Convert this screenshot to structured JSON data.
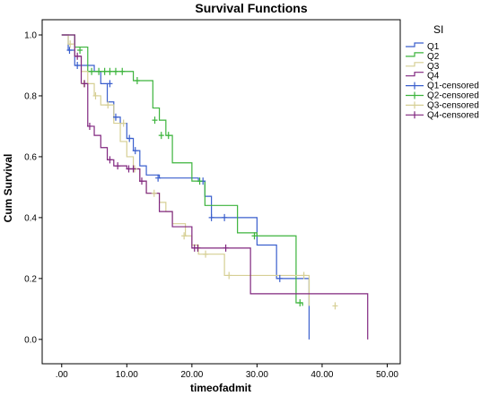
{
  "chart_data": {
    "type": "line",
    "subtype": "kaplan-meier step",
    "title": "Survival Functions",
    "xlabel": "timeofadmit",
    "ylabel": "Cum Survival",
    "xlim": [
      -3,
      52
    ],
    "ylim": [
      -0.08,
      1.05
    ],
    "x_ticks": [
      0,
      10,
      20,
      30,
      40,
      50
    ],
    "x_tick_labels": [
      ".00",
      "10.00",
      "20.00",
      "30.00",
      "40.00",
      "50.00"
    ],
    "y_ticks": [
      0.0,
      0.2,
      0.4,
      0.6,
      0.8,
      1.0
    ],
    "y_tick_labels": [
      "0.0",
      "0.2",
      "0.4",
      "0.6",
      "0.8",
      "1.0"
    ],
    "grid": false,
    "legend": {
      "title": "SI",
      "placement": "top-right outside",
      "entries": [
        "Q1",
        "Q2",
        "Q3",
        "Q4",
        "Q1-censored",
        "Q2-censored",
        "Q3-censored",
        "Q4-censored"
      ]
    },
    "series": [
      {
        "name": "Q1",
        "color": "#3a5fcd",
        "steps": [
          [
            0,
            1.0
          ],
          [
            1,
            0.95
          ],
          [
            2,
            0.9
          ],
          [
            5,
            0.88
          ],
          [
            6,
            0.84
          ],
          [
            7,
            0.78
          ],
          [
            8,
            0.73
          ],
          [
            9,
            0.71
          ],
          [
            10,
            0.66
          ],
          [
            11,
            0.62
          ],
          [
            12,
            0.57
          ],
          [
            13,
            0.54
          ],
          [
            15,
            0.53
          ],
          [
            21,
            0.52
          ],
          [
            22,
            0.47
          ],
          [
            23,
            0.4
          ],
          [
            30,
            0.31
          ],
          [
            33,
            0.2
          ],
          [
            38,
            0.0
          ]
        ],
        "censored": [
          [
            1.2,
            0.95
          ],
          [
            2.4,
            0.9
          ],
          [
            7.4,
            0.84
          ],
          [
            8.3,
            0.73
          ],
          [
            10.4,
            0.66
          ],
          [
            11.3,
            0.62
          ],
          [
            14.8,
            0.53
          ],
          [
            21.7,
            0.52
          ],
          [
            23,
            0.4
          ],
          [
            25,
            0.4
          ],
          [
            33.5,
            0.2
          ]
        ]
      },
      {
        "name": "Q2",
        "color": "#3cb43c",
        "steps": [
          [
            0,
            1.0
          ],
          [
            2,
            0.96
          ],
          [
            4,
            0.88
          ],
          [
            11,
            0.85
          ],
          [
            14,
            0.76
          ],
          [
            15,
            0.72
          ],
          [
            16,
            0.67
          ],
          [
            17,
            0.58
          ],
          [
            20,
            0.52
          ],
          [
            22,
            0.44
          ],
          [
            27,
            0.35
          ],
          [
            30,
            0.34
          ],
          [
            36,
            0.12
          ],
          [
            37,
            0.11
          ]
        ],
        "censored": [
          [
            2.8,
            0.95
          ],
          [
            4.6,
            0.88
          ],
          [
            5.7,
            0.88
          ],
          [
            6.6,
            0.88
          ],
          [
            7.4,
            0.88
          ],
          [
            8.3,
            0.88
          ],
          [
            9.3,
            0.88
          ],
          [
            11.6,
            0.85
          ],
          [
            14.3,
            0.72
          ],
          [
            15.3,
            0.67
          ],
          [
            16.4,
            0.67
          ],
          [
            21.2,
            0.52
          ],
          [
            29.6,
            0.34
          ],
          [
            36.6,
            0.12
          ]
        ]
      },
      {
        "name": "Q3",
        "color": "#d6cf94",
        "steps": [
          [
            0,
            1.0
          ],
          [
            1,
            0.97
          ],
          [
            2,
            0.93
          ],
          [
            3,
            0.88
          ],
          [
            4,
            0.84
          ],
          [
            5,
            0.8
          ],
          [
            6,
            0.77
          ],
          [
            8,
            0.71
          ],
          [
            9,
            0.65
          ],
          [
            10,
            0.6
          ],
          [
            11,
            0.56
          ],
          [
            12,
            0.52
          ],
          [
            13,
            0.48
          ],
          [
            15,
            0.45
          ],
          [
            16,
            0.42
          ],
          [
            17,
            0.38
          ],
          [
            19,
            0.34
          ],
          [
            20,
            0.31
          ],
          [
            21,
            0.28
          ],
          [
            25,
            0.21
          ],
          [
            38,
            0.11
          ]
        ],
        "censored": [
          [
            1.3,
            0.97
          ],
          [
            3.4,
            0.84
          ],
          [
            5.2,
            0.8
          ],
          [
            7.1,
            0.77
          ],
          [
            9.5,
            0.71
          ],
          [
            11.2,
            0.56
          ],
          [
            14.2,
            0.48
          ],
          [
            18.8,
            0.34
          ],
          [
            22.1,
            0.28
          ],
          [
            25.7,
            0.21
          ],
          [
            37.2,
            0.21
          ],
          [
            42.0,
            0.11
          ]
        ]
      },
      {
        "name": "Q4",
        "color": "#80267f",
        "steps": [
          [
            0,
            1.0
          ],
          [
            2,
            0.93
          ],
          [
            3,
            0.84
          ],
          [
            4,
            0.7
          ],
          [
            5,
            0.67
          ],
          [
            6,
            0.63
          ],
          [
            7,
            0.59
          ],
          [
            8,
            0.57
          ],
          [
            10,
            0.56
          ],
          [
            12,
            0.52
          ],
          [
            13,
            0.48
          ],
          [
            15,
            0.42
          ],
          [
            17,
            0.37
          ],
          [
            20,
            0.3
          ],
          [
            29,
            0.15
          ],
          [
            47,
            0.0
          ]
        ],
        "censored": [
          [
            2.4,
            0.93
          ],
          [
            3.5,
            0.84
          ],
          [
            4.3,
            0.7
          ],
          [
            7.4,
            0.59
          ],
          [
            8.6,
            0.57
          ],
          [
            10.3,
            0.56
          ],
          [
            11.0,
            0.56
          ],
          [
            12.3,
            0.52
          ],
          [
            20.4,
            0.3
          ],
          [
            20.9,
            0.3
          ],
          [
            25.2,
            0.3
          ]
        ]
      }
    ]
  }
}
